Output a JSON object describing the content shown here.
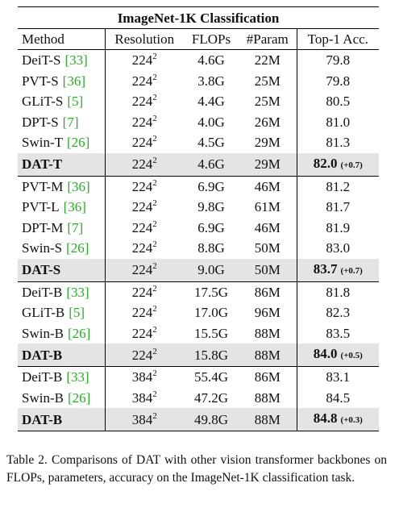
{
  "table": {
    "title": "ImageNet-1K Classification",
    "header": [
      "Method",
      "Resolution",
      "FLOPs",
      "#Param",
      "Top-1 Acc."
    ],
    "groups": [
      [
        {
          "method": "DeiT-S",
          "cite": "[33]",
          "res": "224",
          "exp": "2",
          "flops": "4.6G",
          "params": "22M",
          "top1": "79.8"
        },
        {
          "method": "PVT-S",
          "cite": "[36]",
          "res": "224",
          "exp": "2",
          "flops": "3.8G",
          "params": "25M",
          "top1": "79.8"
        },
        {
          "method": "GLiT-S",
          "cite": "[5]",
          "res": "224",
          "exp": "2",
          "flops": "4.4G",
          "params": "25M",
          "top1": "80.5"
        },
        {
          "method": "DPT-S",
          "cite": "[7]",
          "res": "224",
          "exp": "2",
          "flops": "4.0G",
          "params": "26M",
          "top1": "81.0"
        },
        {
          "method": "Swin-T",
          "cite": "[26]",
          "res": "224",
          "exp": "2",
          "flops": "4.5G",
          "params": "29M",
          "top1": "81.3"
        },
        {
          "method": "DAT-T",
          "res": "224",
          "exp": "2",
          "flops": "4.6G",
          "params": "29M",
          "top1": "82.0",
          "gain": "(+0.7)"
        }
      ],
      [
        {
          "method": "PVT-M",
          "cite": "[36]",
          "res": "224",
          "exp": "2",
          "flops": "6.9G",
          "params": "46M",
          "top1": "81.2"
        },
        {
          "method": "PVT-L",
          "cite": "[36]",
          "res": "224",
          "exp": "2",
          "flops": "9.8G",
          "params": "61M",
          "top1": "81.7"
        },
        {
          "method": "DPT-M",
          "cite": "[7]",
          "res": "224",
          "exp": "2",
          "flops": "6.9G",
          "params": "46M",
          "top1": "81.9"
        },
        {
          "method": "Swin-S",
          "cite": "[26]",
          "res": "224",
          "exp": "2",
          "flops": "8.8G",
          "params": "50M",
          "top1": "83.0"
        },
        {
          "method": "DAT-S",
          "res": "224",
          "exp": "2",
          "flops": "9.0G",
          "params": "50M",
          "top1": "83.7",
          "gain": "(+0.7)"
        }
      ],
      [
        {
          "method": "DeiT-B",
          "cite": "[33]",
          "res": "224",
          "exp": "2",
          "flops": "17.5G",
          "params": "86M",
          "top1": "81.8"
        },
        {
          "method": "GLiT-B",
          "cite": "[5]",
          "res": "224",
          "exp": "2",
          "flops": "17.0G",
          "params": "96M",
          "top1": "82.3"
        },
        {
          "method": "Swin-B",
          "cite": "[26]",
          "res": "224",
          "exp": "2",
          "flops": "15.5G",
          "params": "88M",
          "top1": "83.5"
        },
        {
          "method": "DAT-B",
          "res": "224",
          "exp": "2",
          "flops": "15.8G",
          "params": "88M",
          "top1": "84.0",
          "gain": "(+0.5)"
        }
      ],
      [
        {
          "method": "DeiT-B",
          "cite": "[33]",
          "res": "384",
          "exp": "2",
          "flops": "55.4G",
          "params": "86M",
          "top1": "83.1"
        },
        {
          "method": "Swin-B",
          "cite": "[26]",
          "res": "384",
          "exp": "2",
          "flops": "47.2G",
          "params": "88M",
          "top1": "84.5"
        },
        {
          "method": "DAT-B",
          "res": "384",
          "exp": "2",
          "flops": "49.8G",
          "params": "88M",
          "top1": "84.8",
          "gain": "(+0.3)"
        }
      ]
    ],
    "caption": "Table 2. Comparisons of DAT with other vision transformer backbones on FLOPs, parameters, accuracy on the ImageNet-1K classification task."
  }
}
